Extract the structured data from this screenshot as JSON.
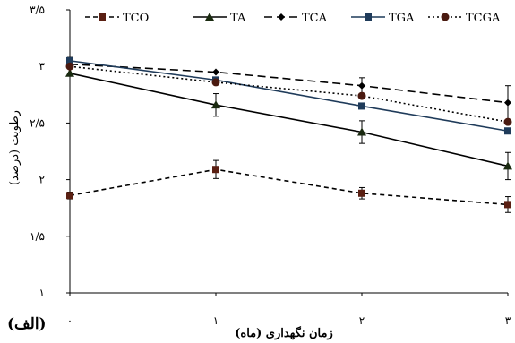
{
  "panel_label": "(الف)",
  "chart_data": {
    "type": "line",
    "xlabel": "زمان نگهداری (ماه)",
    "ylabel": "رطوبت (درصد)",
    "x": [
      0,
      1,
      2,
      3
    ],
    "x_tick_labels": [
      "۰",
      "۱",
      "۲",
      "۳"
    ],
    "ylim": [
      1,
      3.5
    ],
    "y_ticks": [
      1,
      1.5,
      2,
      2.5,
      3,
      3.5
    ],
    "y_tick_labels": [
      "۱",
      "۱/۵",
      "۲",
      "۲/۵",
      "۳",
      "۳/۵"
    ],
    "grid": false,
    "legend_position": "top",
    "series": [
      {
        "name": "TCO",
        "values": [
          1.86,
          2.09,
          1.88,
          1.78
        ],
        "errors": [
          0.03,
          0.08,
          0.05,
          0.07
        ],
        "color": "#000000",
        "line": "dashed-short",
        "marker": "square-brown"
      },
      {
        "name": "TA",
        "values": [
          2.94,
          2.66,
          2.42,
          2.12
        ],
        "errors": [
          0.0,
          0.1,
          0.1,
          0.12
        ],
        "color": "#000000",
        "line": "solid",
        "marker": "triangle"
      },
      {
        "name": "TCA",
        "values": [
          3.02,
          2.95,
          2.83,
          2.68
        ],
        "errors": [
          0.0,
          0.0,
          0.07,
          0.15
        ],
        "color": "#000000",
        "line": "dashed-long",
        "marker": "diamond"
      },
      {
        "name": "TGA",
        "values": [
          3.05,
          2.88,
          2.65,
          2.43
        ],
        "errors": [
          0.03,
          0.0,
          0.0,
          0.0
        ],
        "color": "#1f3b5a",
        "line": "solid",
        "marker": "square-blue"
      },
      {
        "name": "TCGA",
        "values": [
          3.0,
          2.86,
          2.74,
          2.51
        ],
        "errors": [
          0.0,
          0.0,
          0.0,
          0.0
        ],
        "color": "#000000",
        "line": "dotted",
        "marker": "circle-brown"
      }
    ]
  }
}
